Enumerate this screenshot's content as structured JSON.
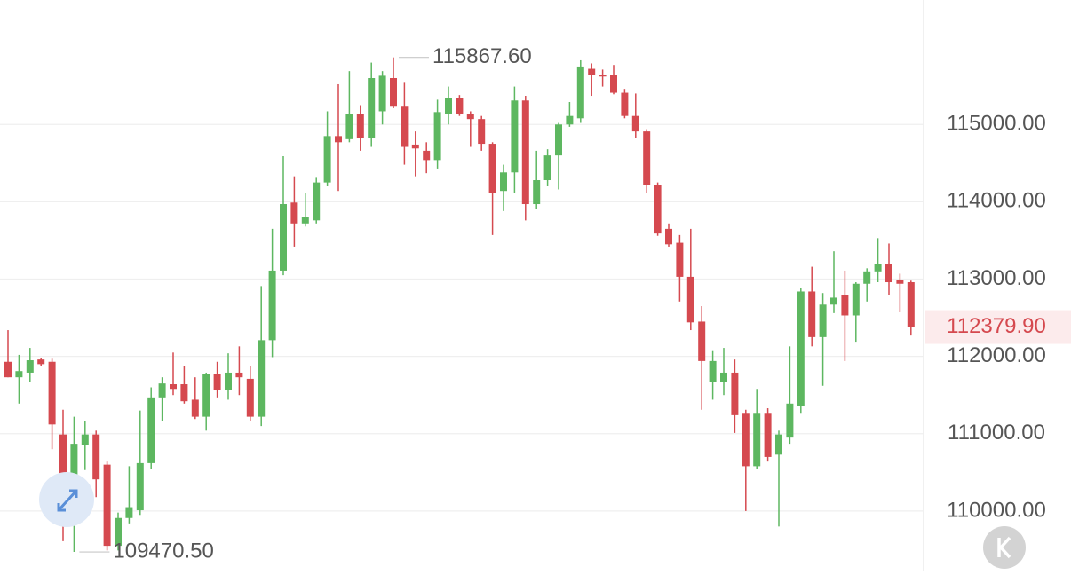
{
  "chart_data": {
    "type": "candlestick",
    "up_color": "#5db760",
    "down_color": "#d5494f",
    "grid": true,
    "ylim": [
      109230,
      116610
    ],
    "yticks": [
      {
        "value": 110000,
        "label": "110000.00"
      },
      {
        "value": 111000,
        "label": "111000.00"
      },
      {
        "value": 112000,
        "label": "112000.00"
      },
      {
        "value": 113000,
        "label": "113000.00"
      },
      {
        "value": 114000,
        "label": "114000.00"
      },
      {
        "value": 115000,
        "label": "115000.00"
      }
    ],
    "last_price": {
      "value": 112379.9,
      "label": "112379.90"
    },
    "annotations": [
      {
        "value": 115867.6,
        "label": "115867.60"
      },
      {
        "value": 109470.5,
        "label": "109470.50"
      }
    ],
    "open": [
      111930,
      111730,
      111790,
      111960,
      111930,
      110990,
      110180,
      110850,
      110990,
      110600,
      109550,
      109910,
      110010,
      110620,
      111470,
      111640,
      111640,
      111440,
      111220,
      111770,
      111560,
      111790,
      111710,
      111220,
      112210,
      113110,
      113990,
      113720,
      113760,
      114250,
      114850,
      114810,
      115140,
      114830,
      115170,
      115600,
      115230,
      114740,
      114660,
      114540,
      115140,
      115340,
      115140,
      115070,
      114750,
      114140,
      114380,
      115310,
      113970,
      114280,
      114600,
      115000,
      115080,
      115720,
      115640,
      115640,
      115410,
      115110,
      114910,
      114220,
      113650,
      113470,
      113030,
      112450,
      111670,
      111670,
      111790,
      111270,
      110580,
      111270,
      110730,
      110950,
      111360,
      112840,
      112250,
      112670,
      112790,
      112530,
      112940,
      113100,
      113190,
      112990,
      112960
    ],
    "high": [
      112340,
      112020,
      112110,
      111980,
      111970,
      111310,
      111220,
      111160,
      111040,
      110640,
      109980,
      110580,
      111300,
      111600,
      111730,
      112050,
      111880,
      111730,
      111790,
      111930,
      112040,
      112130,
      111880,
      112910,
      113650,
      114590,
      114330,
      114110,
      114310,
      115170,
      115520,
      115690,
      115250,
      115800,
      115690,
      115867.6,
      115550,
      114910,
      114770,
      115320,
      115490,
      115380,
      115170,
      115110,
      114770,
      114480,
      115490,
      115370,
      114660,
      114680,
      115020,
      115290,
      115830,
      115790,
      115710,
      115770,
      115460,
      115400,
      114940,
      114250,
      113720,
      113570,
      113650,
      112650,
      112080,
      112110,
      111960,
      111310,
      111580,
      111330,
      111040,
      112130,
      112880,
      113160,
      112820,
      113360,
      113110,
      112960,
      113140,
      113530,
      113460,
      113070,
      112980
    ],
    "low": [
      111730,
      111390,
      111670,
      111880,
      110800,
      109610,
      109470.5,
      110530,
      110180,
      109490,
      109490,
      109840,
      109950,
      110550,
      111160,
      111500,
      111390,
      111190,
      111040,
      111470,
      111440,
      111500,
      111160,
      111100,
      111990,
      113050,
      113420,
      113680,
      113720,
      114200,
      114140,
      114770,
      114660,
      114710,
      115000,
      115210,
      114480,
      114330,
      114370,
      114430,
      115000,
      115110,
      114710,
      114660,
      113570,
      113880,
      114110,
      113760,
      113910,
      114200,
      114160,
      114970,
      115020,
      115370,
      115490,
      115390,
      115080,
      114830,
      114110,
      113560,
      113420,
      112710,
      112340,
      111310,
      111440,
      111500,
      111010,
      110000,
      110550,
      110640,
      109800,
      110870,
      111270,
      112130,
      111620,
      112560,
      111940,
      112190,
      112710,
      112960,
      112790,
      112570,
      112270
    ],
    "close": [
      111730,
      111810,
      111950,
      111900,
      111120,
      110180,
      110870,
      110990,
      110410,
      109550,
      109910,
      110050,
      110620,
      111470,
      111650,
      111580,
      111420,
      111220,
      111770,
      111560,
      111790,
      111730,
      111220,
      112210,
      113110,
      113970,
      113720,
      113800,
      114250,
      114850,
      114770,
      115140,
      114830,
      115600,
      115630,
      115230,
      114710,
      114690,
      114540,
      115160,
      115340,
      115140,
      115070,
      114750,
      114110,
      114380,
      115310,
      113970,
      114280,
      114600,
      115000,
      115110,
      115750,
      115640,
      115620,
      115410,
      115110,
      114910,
      114220,
      113590,
      113450,
      113030,
      112440,
      111940,
      111940,
      111790,
      111240,
      110580,
      111270,
      110700,
      110990,
      111390,
      112840,
      112250,
      112670,
      112760,
      112530,
      112940,
      113100,
      113190,
      112960,
      112940,
      112379.9
    ]
  }
}
